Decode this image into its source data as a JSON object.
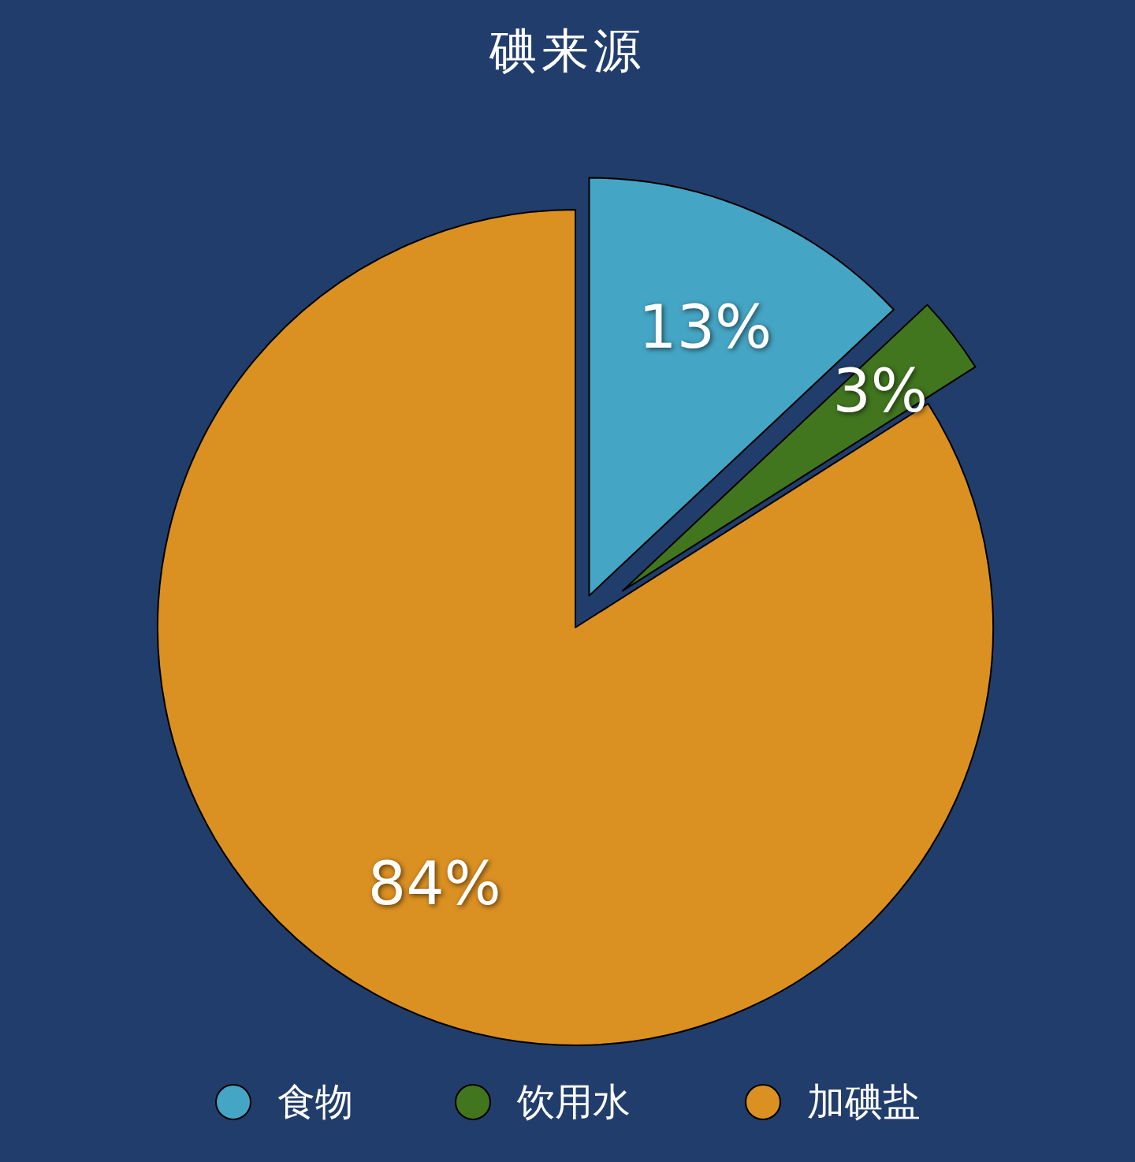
{
  "chart_data": {
    "type": "pie",
    "title": "碘来源",
    "categories": [
      "食物",
      "饮用水",
      "加碘盐"
    ],
    "values": [
      13,
      3,
      84
    ],
    "colors": [
      "#45a5c4",
      "#41761f",
      "#db9022"
    ],
    "value_labels": [
      "13%",
      "3%",
      "84%"
    ],
    "legend": "bottom"
  }
}
